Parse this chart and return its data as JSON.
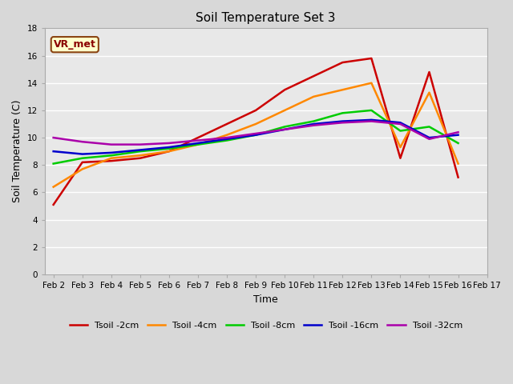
{
  "title": "Soil Temperature Set 3",
  "xlabel": "Time",
  "ylabel": "Soil Temperature (C)",
  "annotation": "VR_met",
  "ylim": [
    0,
    18
  ],
  "x_labels": [
    "Feb 2",
    "Feb 3",
    "Feb 4",
    "Feb 5",
    "Feb 6",
    "Feb 7",
    "Feb 8",
    "Feb 9",
    "Feb 10",
    "Feb 11",
    "Feb 12",
    "Feb 13",
    "Feb 14",
    "Feb 15",
    "Feb 16",
    "Feb 17"
  ],
  "series": [
    {
      "label": "Tsoil -2cm",
      "color": "#cc0000",
      "data": [
        5.1,
        8.2,
        8.3,
        8.5,
        9.0,
        10.0,
        11.0,
        12.0,
        13.5,
        14.5,
        15.5,
        15.8,
        8.5,
        14.8,
        7.1,
        null
      ]
    },
    {
      "label": "Tsoil -4cm",
      "color": "#ff8800",
      "data": [
        6.4,
        7.7,
        8.5,
        8.7,
        9.0,
        9.5,
        10.2,
        11.0,
        12.0,
        13.0,
        13.5,
        14.0,
        9.3,
        13.3,
        8.1,
        null
      ]
    },
    {
      "label": "Tsoil -8cm",
      "color": "#00cc00",
      "data": [
        8.1,
        8.5,
        8.7,
        9.0,
        9.2,
        9.5,
        9.8,
        10.2,
        10.8,
        11.2,
        11.8,
        12.0,
        10.5,
        10.8,
        9.6,
        null
      ]
    },
    {
      "label": "Tsoil -16cm",
      "color": "#0000cc",
      "data": [
        9.0,
        8.8,
        8.9,
        9.1,
        9.3,
        9.6,
        9.9,
        10.2,
        10.6,
        11.0,
        11.2,
        11.3,
        11.1,
        10.0,
        10.2,
        null
      ]
    },
    {
      "label": "Tsoil -32cm",
      "color": "#aa00aa",
      "data": [
        10.0,
        9.7,
        9.5,
        9.5,
        9.6,
        9.8,
        10.0,
        10.3,
        10.6,
        10.9,
        11.1,
        11.2,
        11.0,
        9.9,
        10.4,
        null
      ]
    }
  ],
  "fig_bg_color": "#d8d8d8",
  "plot_bg_color": "#e8e8e8",
  "grid_color": "#ffffff",
  "title_fontsize": 11,
  "axis_label_fontsize": 9,
  "tick_fontsize": 7.5,
  "legend_fontsize": 8,
  "annot_fontsize": 9,
  "linewidth": 1.8
}
